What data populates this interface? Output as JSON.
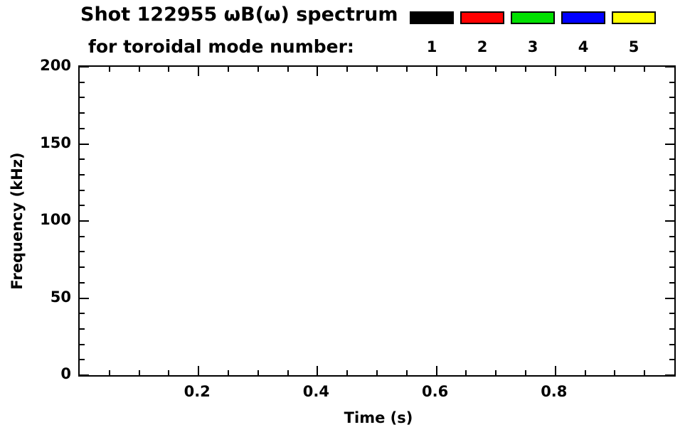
{
  "chart_data": {
    "type": "heatmap",
    "title": "Shot 122955 ωB(ω) spectrum",
    "subtitle": "for toroidal mode number:",
    "xlabel": "Time (s)",
    "ylabel": "Frequency (kHz)",
    "xlim": [
      0.0,
      1.0
    ],
    "ylim": [
      0,
      200
    ],
    "x_ticks": [
      0.2,
      0.4,
      0.6,
      0.8
    ],
    "x_tick_labels": [
      "0.2",
      "0.4",
      "0.6",
      "0.8"
    ],
    "y_ticks": [
      0,
      50,
      100,
      150,
      200
    ],
    "y_tick_labels": [
      "0",
      "50",
      "100",
      "150",
      "200"
    ],
    "x_major_step": 0.2,
    "x_minor_step": 0.05,
    "y_major_step": 50,
    "y_minor_step": 10,
    "grid": false,
    "plot_background": "#FFFFFF",
    "axis_color": "#000000",
    "legend": {
      "position": "top-right",
      "entries": [
        {
          "label": "1",
          "color": "#000000"
        },
        {
          "label": "2",
          "color": "#FF0000"
        },
        {
          "label": "3",
          "color": "#00E000"
        },
        {
          "label": "4",
          "color": "#0000FF"
        },
        {
          "label": "5",
          "color": "#FFFF00"
        }
      ]
    },
    "series": []
  }
}
